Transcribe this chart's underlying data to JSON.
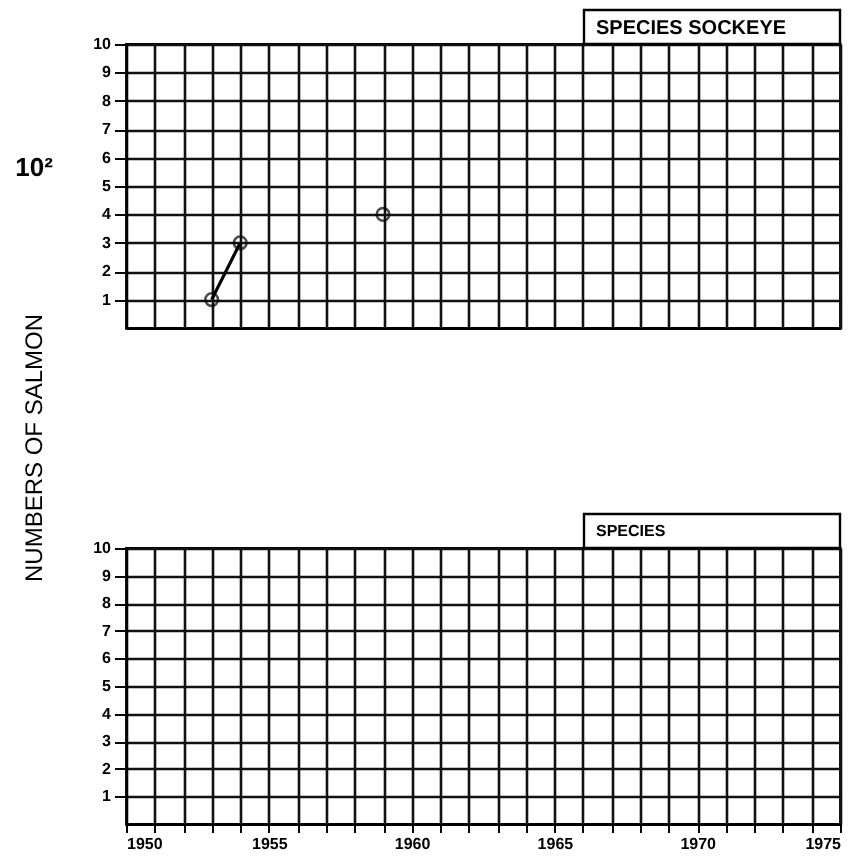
{
  "chart_data": [
    {
      "type": "line",
      "title": "SPECIES SOCKEYE",
      "ylabel": "NUMBERS OF SALMON",
      "annotations": [
        "10²"
      ],
      "marker": "circle",
      "grid": true,
      "tick_labels": "y",
      "xlim": [
        1950,
        1975
      ],
      "xticks": [
        1950,
        {
          "value": 1951,
          "label": null
        },
        {
          "value": 1952,
          "label": null
        },
        {
          "value": 1953,
          "label": null
        },
        {
          "value": 1954,
          "label": null
        },
        1955,
        {
          "value": 1956,
          "label": null
        },
        {
          "value": 1957,
          "label": null
        },
        {
          "value": 1958,
          "label": null
        },
        {
          "value": 1959,
          "label": null
        },
        1960,
        {
          "value": 1961,
          "label": null
        },
        {
          "value": 1962,
          "label": null
        },
        {
          "value": 1963,
          "label": null
        },
        {
          "value": 1964,
          "label": null
        },
        1965,
        {
          "value": 1966,
          "label": null
        },
        {
          "value": 1967,
          "label": null
        },
        {
          "value": 1968,
          "label": null
        },
        {
          "value": 1969,
          "label": null
        },
        1970,
        {
          "value": 1971,
          "label": null
        },
        {
          "value": 1972,
          "label": null
        },
        {
          "value": 1973,
          "label": null
        },
        {
          "value": 1974,
          "label": null
        },
        1975
      ],
      "ylim": [
        0,
        10
      ],
      "yticks": [
        1,
        2,
        3,
        4,
        5,
        6,
        7,
        8,
        9,
        10
      ],
      "series": [
        {
          "color": "#000000",
          "x": [
            1953,
            1954,
            1956,
            1959
          ],
          "values": [
            1,
            3,
            null,
            4
          ]
        }
      ]
    },
    {
      "type": "line",
      "title": "SPECIES",
      "marker": "circle",
      "grid": true,
      "xlim": [
        1950,
        1975
      ],
      "xticks": [
        1950,
        {
          "value": 1951,
          "label": null
        },
        {
          "value": 1952,
          "label": null
        },
        {
          "value": 1953,
          "label": null
        },
        {
          "value": 1954,
          "label": null
        },
        1955,
        {
          "value": 1956,
          "label": null
        },
        {
          "value": 1957,
          "label": null
        },
        {
          "value": 1958,
          "label": null
        },
        {
          "value": 1959,
          "label": null
        },
        1960,
        {
          "value": 1961,
          "label": null
        },
        {
          "value": 1962,
          "label": null
        },
        {
          "value": 1963,
          "label": null
        },
        {
          "value": 1964,
          "label": null
        },
        1965,
        {
          "value": 1966,
          "label": null
        },
        {
          "value": 1967,
          "label": null
        },
        {
          "value": 1968,
          "label": null
        },
        {
          "value": 1969,
          "label": null
        },
        1970,
        {
          "value": 1971,
          "label": null
        },
        {
          "value": 1972,
          "label": null
        },
        {
          "value": 1973,
          "label": null
        },
        {
          "value": 1974,
          "label": null
        },
        1975
      ],
      "ylim": [
        0,
        10
      ],
      "yticks": [
        1,
        2,
        3,
        4,
        5,
        6,
        7,
        8,
        9,
        10
      ]
    }
  ]
}
